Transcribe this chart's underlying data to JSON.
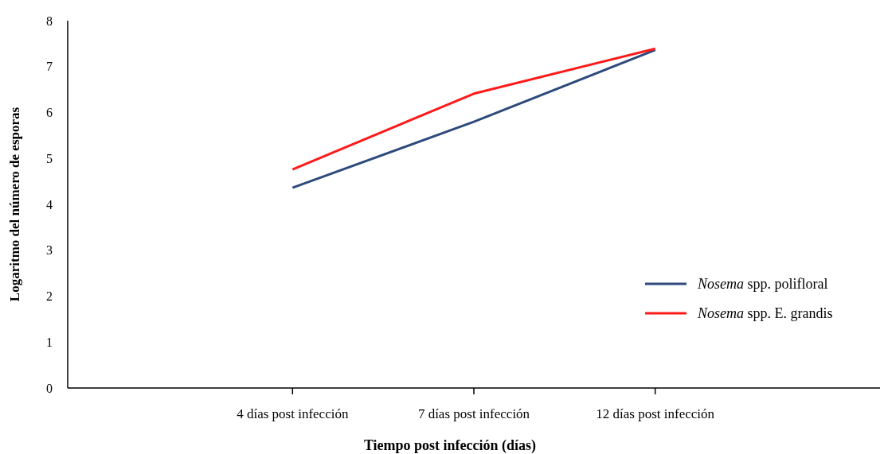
{
  "chart_data": {
    "type": "line",
    "xlabel": "Tiempo  post infección  (días)",
    "ylabel": "Logaritmo  del  número  de  esporas",
    "categories": [
      "4 días post infección",
      "7 días post infección",
      "12 días post infección"
    ],
    "series": [
      {
        "name": "Nosema spp. polifloral",
        "color": "#2e4a7d",
        "values": [
          4.36,
          5.8,
          7.36
        ]
      },
      {
        "name": "Nosema spp. E. grandis",
        "color": "#ff1a1a",
        "values": [
          4.76,
          6.41,
          7.39
        ]
      }
    ],
    "ylim": [
      0,
      8
    ],
    "yticks": [
      0,
      1,
      2,
      3,
      4,
      5,
      6,
      7,
      8
    ],
    "grid": false,
    "legend": "right",
    "marker": "none",
    "line_style": "solid"
  }
}
